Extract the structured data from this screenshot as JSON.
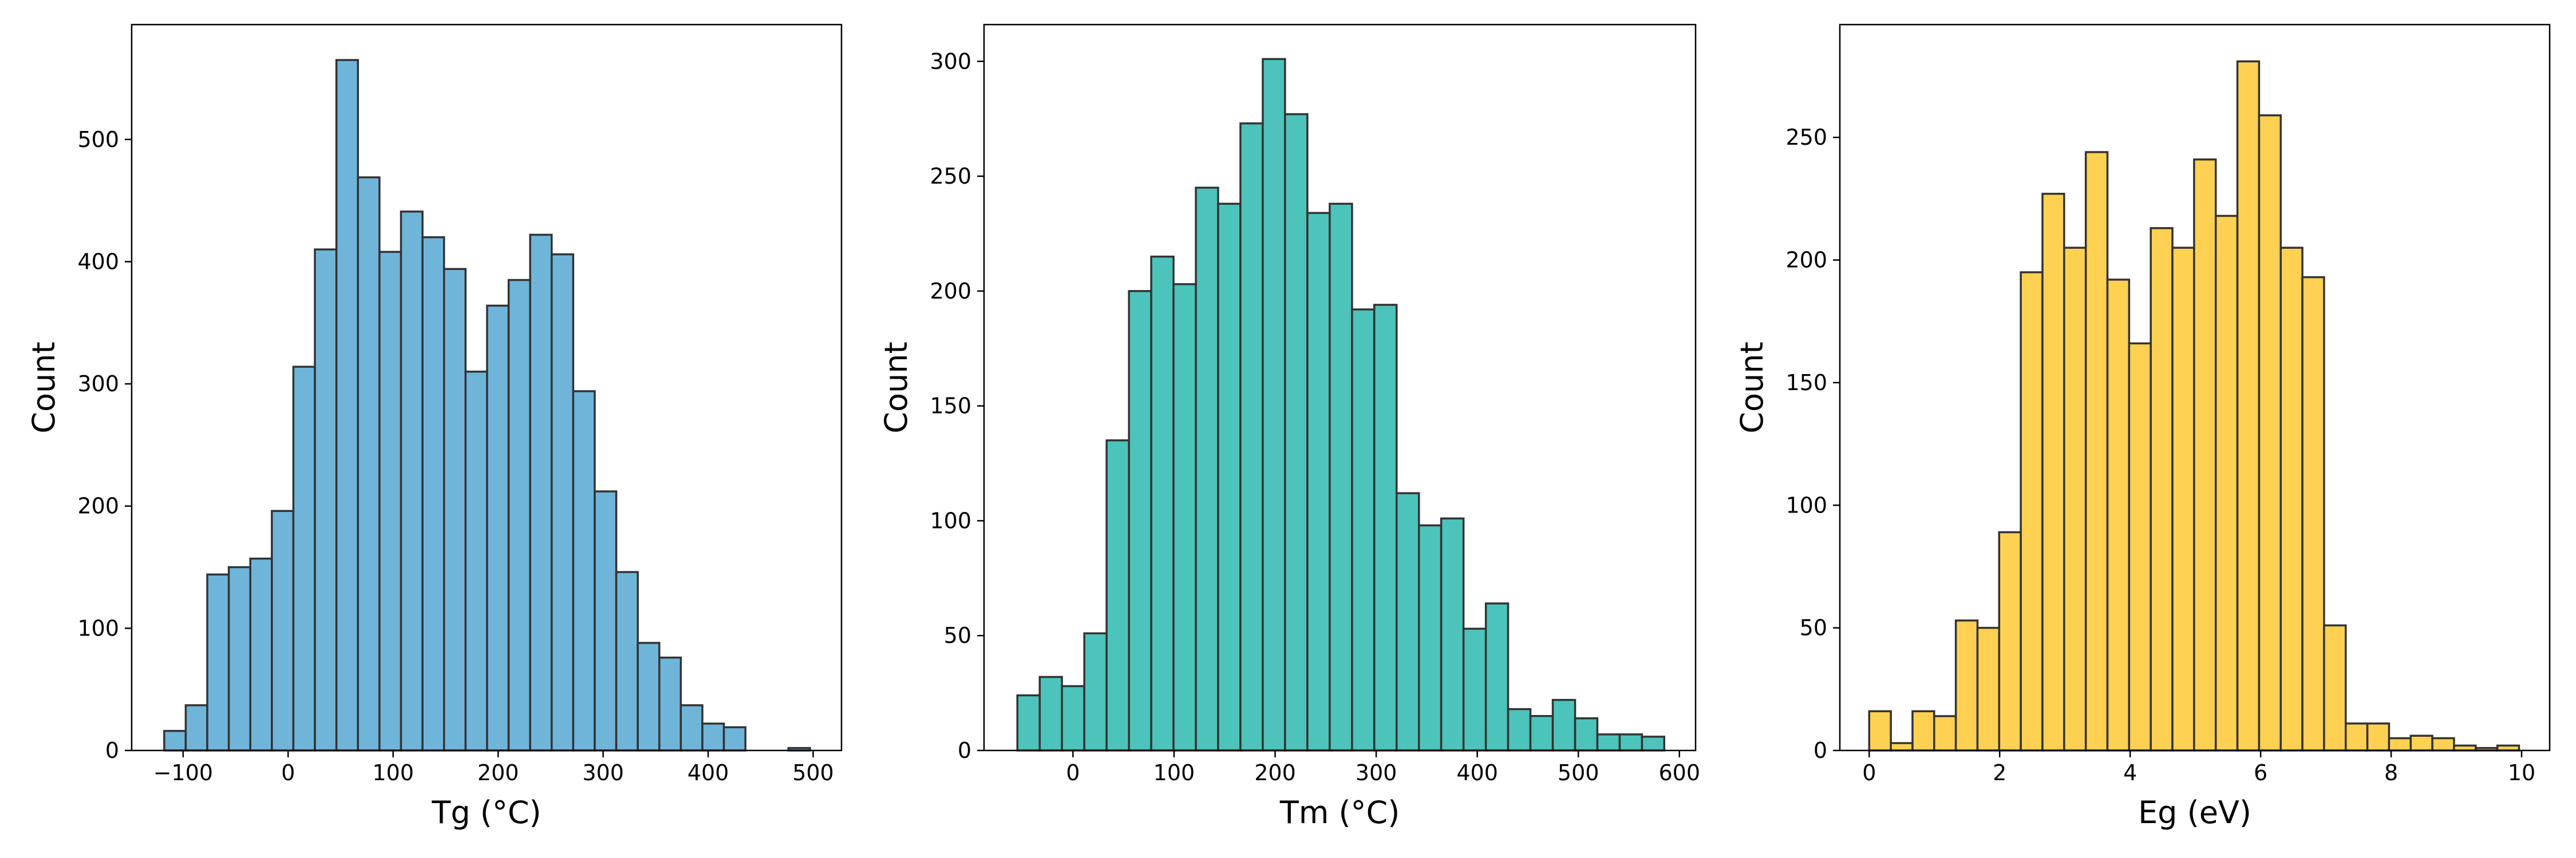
{
  "chart_data": [
    {
      "type": "histogram",
      "x_label": "Tg (°C)",
      "y_label": "Count",
      "color": "#6fb5da",
      "bins": [
        -118,
        -97.5,
        -77,
        -56.5,
        -36,
        -15.5,
        5,
        25.5,
        46,
        66.5,
        87,
        107.5,
        128,
        148.5,
        169,
        189.5,
        210,
        230.5,
        251,
        271.5,
        292,
        312.5,
        333,
        353.5,
        374,
        394.5,
        415,
        435.5,
        456,
        476.5,
        497
      ],
      "values": [
        16,
        37,
        144,
        150,
        157,
        196,
        314,
        410,
        565,
        469,
        408,
        441,
        420,
        394,
        310,
        364,
        385,
        422,
        406,
        294,
        212,
        146,
        88,
        76,
        37,
        22,
        19,
        0,
        0,
        2
      ],
      "xlim": [
        -149,
        527
      ],
      "ylim": [
        0,
        594
      ],
      "xticks": [
        {
          "value": -100,
          "label": "−100"
        },
        0,
        100,
        200,
        300,
        400,
        500
      ],
      "yticks": [
        0,
        100,
        200,
        300,
        400,
        500
      ]
    },
    {
      "type": "histogram",
      "x_label": "Tm (°C)",
      "y_label": "Count",
      "color": "#4cc4bb",
      "bins": [
        -55,
        -32.9,
        -10.9,
        11.2,
        33.3,
        55.4,
        77.4,
        99.5,
        121.6,
        143.6,
        165.7,
        187.8,
        209.8,
        231.9,
        254,
        276.1,
        298.1,
        320.2,
        342.3,
        364.3,
        386.4,
        408.5,
        430.5,
        452.6,
        474.7,
        496.8,
        518.8,
        540.9,
        563,
        585
      ],
      "values": [
        24,
        32,
        28,
        51,
        135,
        200,
        215,
        203,
        245,
        238,
        273,
        301,
        277,
        234,
        238,
        192,
        194,
        112,
        98,
        101,
        53,
        64,
        18,
        15,
        22,
        14,
        7,
        7,
        6
      ],
      "xlim": [
        -88,
        616
      ],
      "ylim": [
        0,
        316
      ],
      "xticks": [
        0,
        100,
        200,
        300,
        400,
        500,
        600
      ],
      "yticks": [
        0,
        50,
        100,
        150,
        200,
        250,
        300
      ]
    },
    {
      "type": "histogram",
      "x_label": "Eg (eV)",
      "y_label": "Count",
      "color": "#fed152",
      "bins": [
        0,
        0.332,
        0.664,
        0.996,
        1.328,
        1.66,
        1.992,
        2.324,
        2.656,
        2.988,
        3.32,
        3.652,
        3.984,
        4.316,
        4.648,
        4.98,
        5.312,
        5.644,
        5.976,
        6.308,
        6.64,
        6.972,
        7.304,
        7.636,
        7.968,
        8.3,
        8.632,
        8.964,
        9.296,
        9.628,
        9.96
      ],
      "values": [
        16,
        3,
        16,
        14,
        53,
        50,
        89,
        195,
        227,
        205,
        244,
        192,
        166,
        213,
        205,
        241,
        218,
        281,
        259,
        205,
        193,
        51,
        11,
        11,
        5,
        6,
        5,
        2,
        1,
        2
      ],
      "xlim": [
        -0.45,
        10.43
      ],
      "ylim": [
        0,
        296
      ],
      "xticks": [
        0,
        2,
        4,
        6,
        8,
        10
      ],
      "yticks": [
        0,
        50,
        100,
        150,
        200,
        250
      ]
    }
  ]
}
